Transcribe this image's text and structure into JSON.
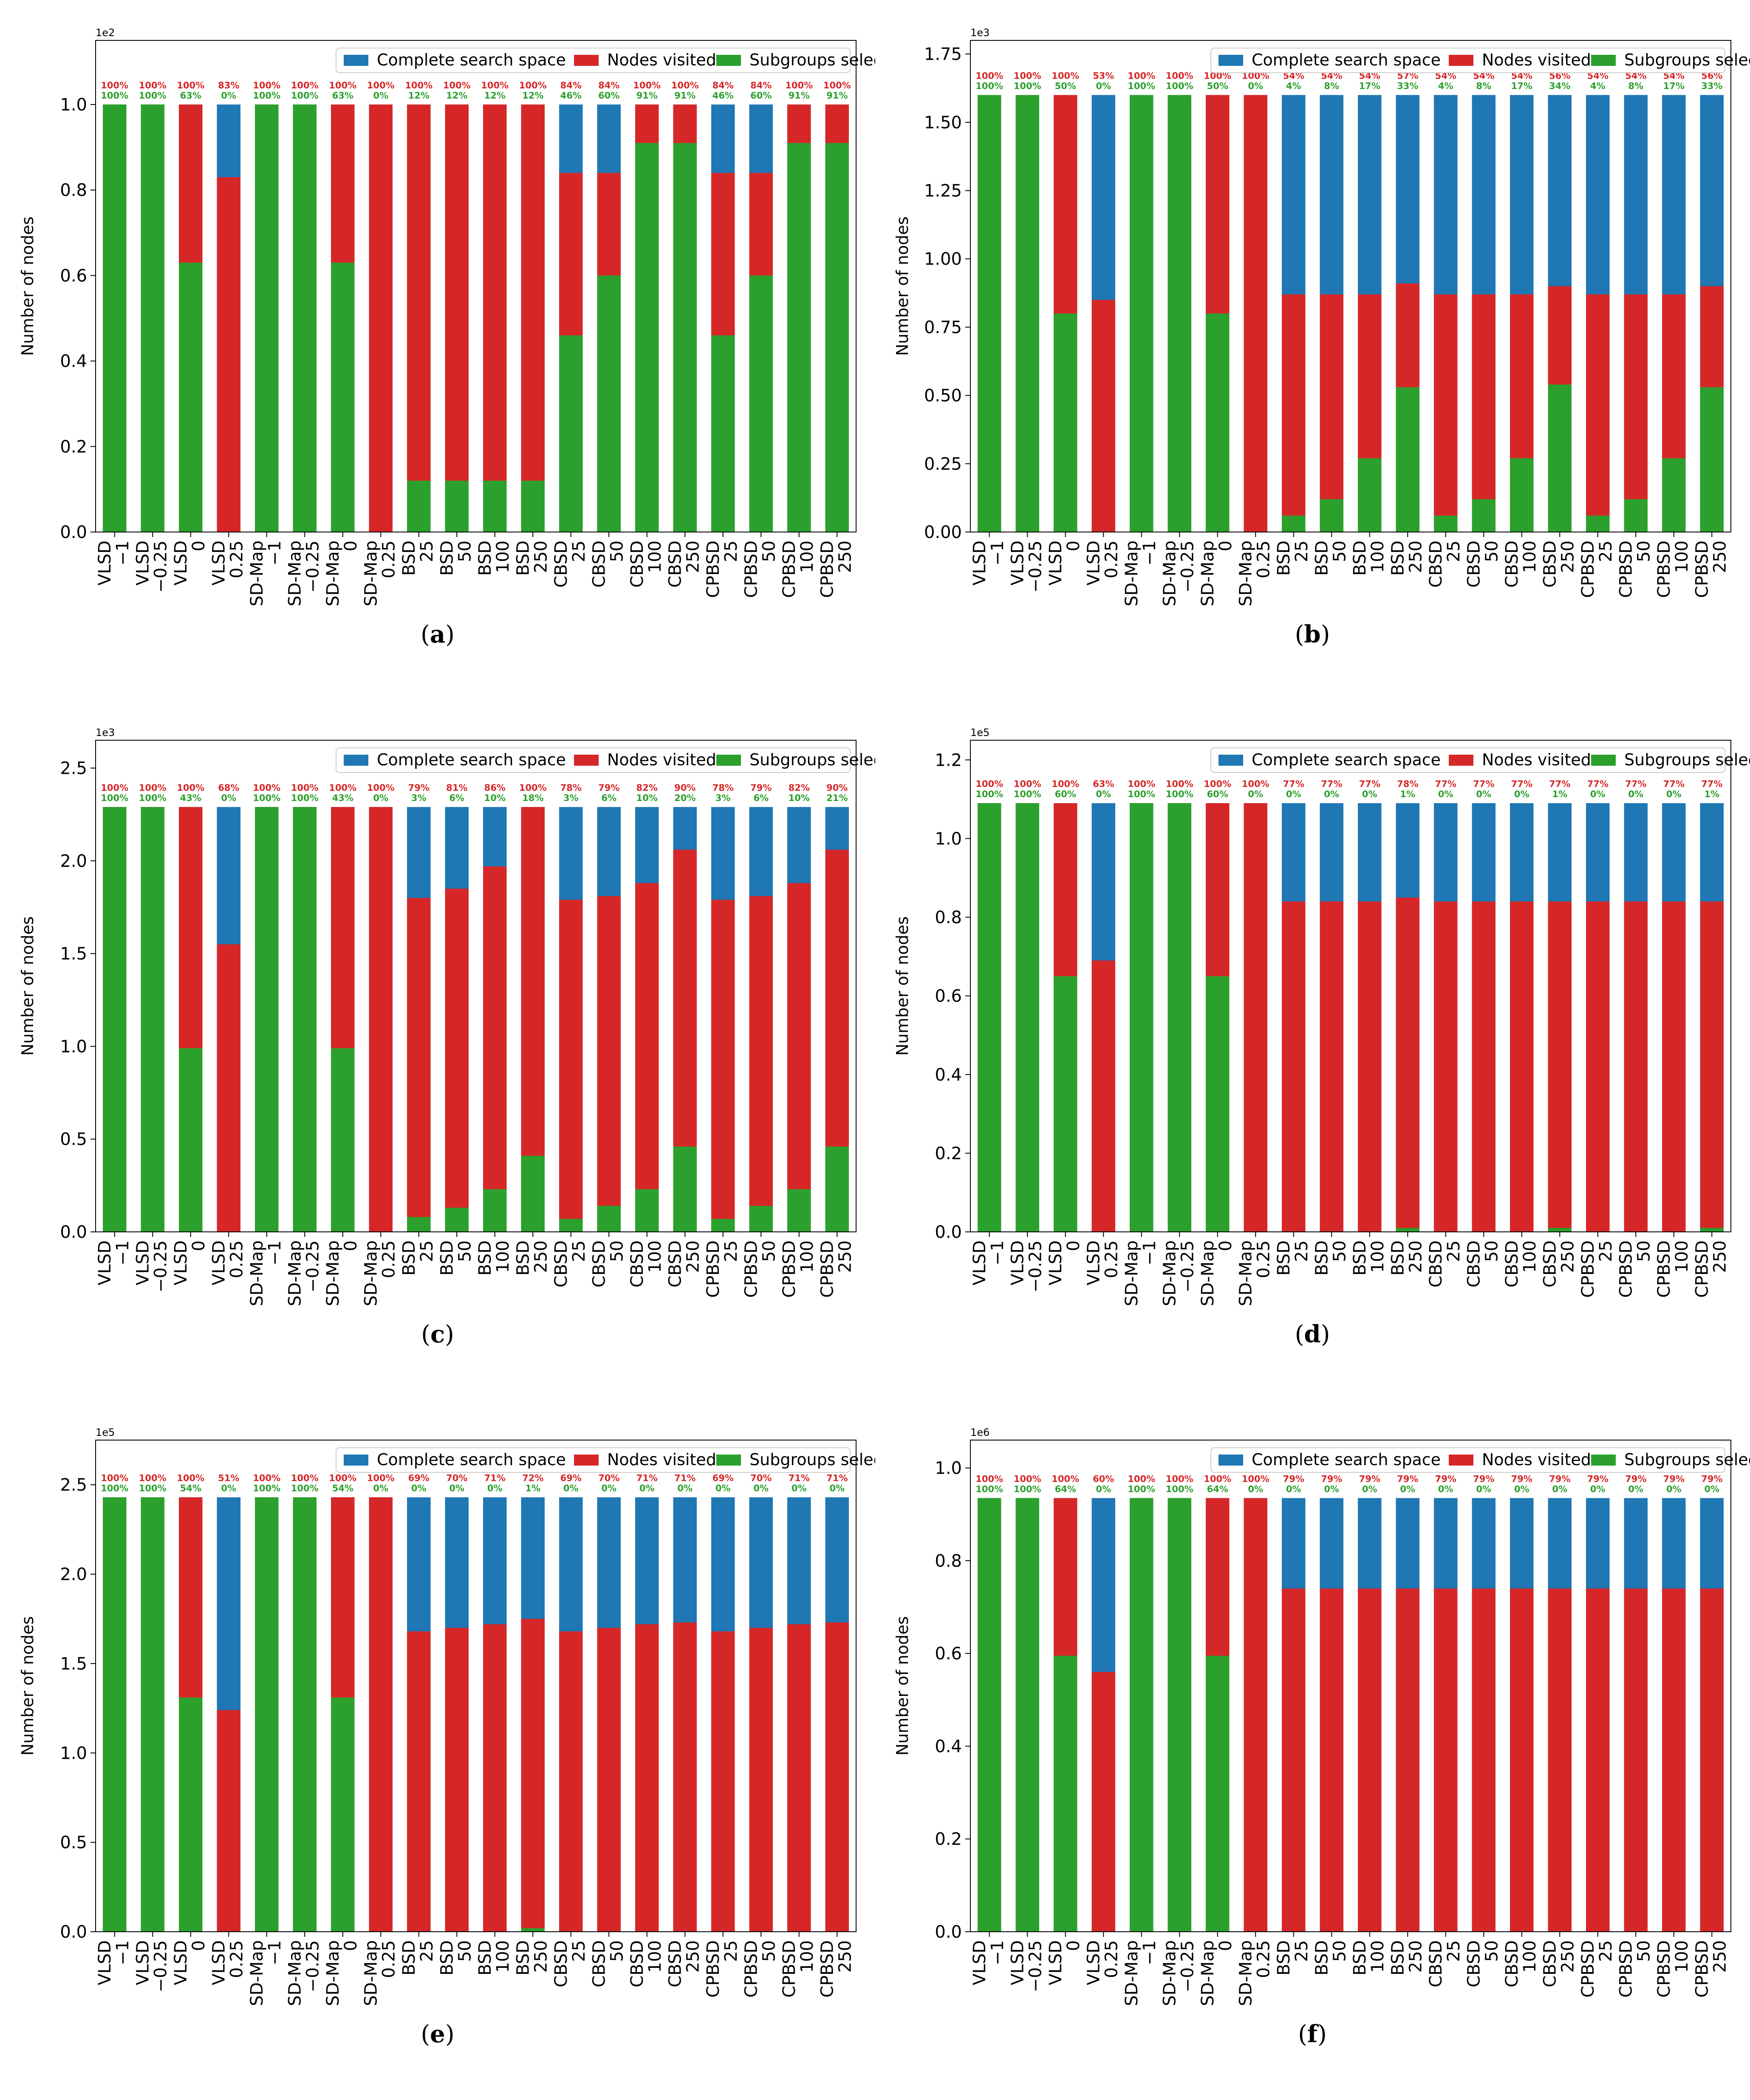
{
  "legend": {
    "complete": "Complete search space",
    "visited": "Nodes visited",
    "selected": "Subgroups selected"
  },
  "colors": {
    "complete": "#1f77b4",
    "visited": "#d62728",
    "selected": "#2ca02c",
    "pct_visited": "#d62728",
    "pct_selected": "#2ca02c"
  },
  "chart_data": [
    {
      "type": "bar",
      "panel": "a",
      "ylabel": "Number of nodes",
      "exponent_label": "1e2",
      "ylim": [
        0,
        1.15
      ],
      "yticks": [
        "0.0",
        "0.2",
        "0.4",
        "0.6",
        "0.8",
        "1.0"
      ],
      "ytick_values": [
        0,
        0.2,
        0.4,
        0.6,
        0.8,
        1.0
      ],
      "legend_position": "top",
      "categories": [
        "VLSD\n−1",
        "VLSD\n−0.25",
        "VLSD\n0",
        "VLSD\n0.25",
        "SD-Map\n−1",
        "SD-Map\n−0.25",
        "SD-Map\n0",
        "SD-Map\n0.25",
        "BSD\n25",
        "BSD\n50",
        "BSD\n100",
        "BSD\n250",
        "CBSD\n25",
        "CBSD\n50",
        "CBSD\n100",
        "CBSD\n250",
        "CPBSD\n25",
        "CPBSD\n50",
        "CPBSD\n100",
        "CPBSD\n250"
      ],
      "complete": [
        1.0,
        1.0,
        1.0,
        1.0,
        1.0,
        1.0,
        1.0,
        1.0,
        1.0,
        1.0,
        1.0,
        1.0,
        1.0,
        1.0,
        1.0,
        1.0,
        1.0,
        1.0,
        1.0,
        1.0
      ],
      "visited": [
        1.0,
        1.0,
        1.0,
        0.83,
        1.0,
        1.0,
        1.0,
        1.0,
        1.0,
        1.0,
        1.0,
        1.0,
        0.84,
        0.84,
        1.0,
        1.0,
        0.84,
        0.84,
        1.0,
        1.0
      ],
      "selected": [
        1.0,
        1.0,
        0.63,
        0.0,
        1.0,
        1.0,
        0.63,
        0.0,
        0.12,
        0.12,
        0.12,
        0.12,
        0.46,
        0.6,
        0.91,
        0.91,
        0.46,
        0.6,
        0.91,
        0.91
      ],
      "pct_visited": [
        "100%",
        "100%",
        "100%",
        "83%",
        "100%",
        "100%",
        "100%",
        "100%",
        "100%",
        "100%",
        "100%",
        "100%",
        "84%",
        "84%",
        "100%",
        "100%",
        "84%",
        "84%",
        "100%",
        "100%"
      ],
      "pct_selected": [
        "100%",
        "100%",
        "63%",
        "0%",
        "100%",
        "100%",
        "63%",
        "0%",
        "12%",
        "12%",
        "12%",
        "12%",
        "46%",
        "60%",
        "91%",
        "91%",
        "46%",
        "60%",
        "91%",
        "91%"
      ]
    },
    {
      "type": "bar",
      "panel": "b",
      "ylabel": "Number of nodes",
      "exponent_label": "1e3",
      "ylim": [
        0,
        1.8
      ],
      "yticks": [
        "0.00",
        "0.25",
        "0.50",
        "0.75",
        "1.00",
        "1.25",
        "1.50",
        "1.75"
      ],
      "ytick_values": [
        0,
        0.25,
        0.5,
        0.75,
        1.0,
        1.25,
        1.5,
        1.75
      ],
      "legend_position": "top",
      "categories": [
        "VLSD\n−1",
        "VLSD\n−0.25",
        "VLSD\n0",
        "VLSD\n0.25",
        "SD-Map\n−1",
        "SD-Map\n−0.25",
        "SD-Map\n0",
        "SD-Map\n0.25",
        "BSD\n25",
        "BSD\n50",
        "BSD\n100",
        "BSD\n250",
        "CBSD\n25",
        "CBSD\n50",
        "CBSD\n100",
        "CBSD\n250",
        "CPBSD\n25",
        "CPBSD\n50",
        "CPBSD\n100",
        "CPBSD\n250"
      ],
      "complete": [
        1.6,
        1.6,
        1.6,
        1.6,
        1.6,
        1.6,
        1.6,
        1.6,
        1.6,
        1.6,
        1.6,
        1.6,
        1.6,
        1.6,
        1.6,
        1.6,
        1.6,
        1.6,
        1.6,
        1.6
      ],
      "visited": [
        1.6,
        1.6,
        1.6,
        0.85,
        1.6,
        1.6,
        1.6,
        1.6,
        0.87,
        0.87,
        0.87,
        0.91,
        0.87,
        0.87,
        0.87,
        0.9,
        0.87,
        0.87,
        0.87,
        0.9
      ],
      "selected": [
        1.6,
        1.6,
        0.8,
        0.0,
        1.6,
        1.6,
        0.8,
        0.0,
        0.06,
        0.12,
        0.27,
        0.53,
        0.06,
        0.12,
        0.27,
        0.54,
        0.06,
        0.12,
        0.27,
        0.53
      ],
      "pct_visited": [
        "100%",
        "100%",
        "100%",
        "53%",
        "100%",
        "100%",
        "100%",
        "100%",
        "54%",
        "54%",
        "54%",
        "57%",
        "54%",
        "54%",
        "54%",
        "56%",
        "54%",
        "54%",
        "54%",
        "56%"
      ],
      "pct_selected": [
        "100%",
        "100%",
        "50%",
        "0%",
        "100%",
        "100%",
        "50%",
        "0%",
        "4%",
        "8%",
        "17%",
        "33%",
        "4%",
        "8%",
        "17%",
        "34%",
        "4%",
        "8%",
        "17%",
        "33%"
      ]
    },
    {
      "type": "bar",
      "panel": "c",
      "ylabel": "Number of nodes",
      "exponent_label": "1e3",
      "ylim": [
        0,
        2.65
      ],
      "yticks": [
        "0.0",
        "0.5",
        "1.0",
        "1.5",
        "2.0",
        "2.5"
      ],
      "ytick_values": [
        0,
        0.5,
        1.0,
        1.5,
        2.0,
        2.5
      ],
      "legend_position": "top",
      "categories": [
        "VLSD\n−1",
        "VLSD\n−0.25",
        "VLSD\n0",
        "VLSD\n0.25",
        "SD-Map\n−1",
        "SD-Map\n−0.25",
        "SD-Map\n0",
        "SD-Map\n0.25",
        "BSD\n25",
        "BSD\n50",
        "BSD\n100",
        "BSD\n250",
        "CBSD\n25",
        "CBSD\n50",
        "CBSD\n100",
        "CBSD\n250",
        "CPBSD\n25",
        "CPBSD\n50",
        "CPBSD\n100",
        "CPBSD\n250"
      ],
      "complete": [
        2.29,
        2.29,
        2.29,
        2.29,
        2.29,
        2.29,
        2.29,
        2.29,
        2.29,
        2.29,
        2.29,
        2.29,
        2.29,
        2.29,
        2.29,
        2.29,
        2.29,
        2.29,
        2.29,
        2.29
      ],
      "visited": [
        2.29,
        2.29,
        2.29,
        1.55,
        2.29,
        2.29,
        2.29,
        2.29,
        1.8,
        1.85,
        1.97,
        2.29,
        1.79,
        1.81,
        1.88,
        2.06,
        1.79,
        1.81,
        1.88,
        2.06
      ],
      "selected": [
        2.29,
        2.29,
        0.99,
        0.0,
        2.29,
        2.29,
        0.99,
        0.0,
        0.08,
        0.13,
        0.23,
        0.41,
        0.07,
        0.14,
        0.23,
        0.46,
        0.07,
        0.14,
        0.23,
        0.46
      ],
      "pct_visited": [
        "100%",
        "100%",
        "100%",
        "68%",
        "100%",
        "100%",
        "100%",
        "100%",
        "79%",
        "81%",
        "86%",
        "100%",
        "78%",
        "79%",
        "82%",
        "90%",
        "78%",
        "79%",
        "82%",
        "90%"
      ],
      "pct_selected": [
        "100%",
        "100%",
        "43%",
        "0%",
        "100%",
        "100%",
        "43%",
        "0%",
        "3%",
        "6%",
        "10%",
        "18%",
        "3%",
        "6%",
        "10%",
        "20%",
        "3%",
        "6%",
        "10%",
        "21%"
      ]
    },
    {
      "type": "bar",
      "panel": "d",
      "ylabel": "Number of nodes",
      "exponent_label": "1e5",
      "ylim": [
        0,
        1.25
      ],
      "yticks": [
        "0.0",
        "0.2",
        "0.4",
        "0.6",
        "0.8",
        "1.0",
        "1.2"
      ],
      "ytick_values": [
        0,
        0.2,
        0.4,
        0.6,
        0.8,
        1.0,
        1.2
      ],
      "legend_position": "top",
      "categories": [
        "VLSD\n−1",
        "VLSD\n−0.25",
        "VLSD\n0",
        "VLSD\n0.25",
        "SD-Map\n−1",
        "SD-Map\n−0.25",
        "SD-Map\n0",
        "SD-Map\n0.25",
        "BSD\n25",
        "BSD\n50",
        "BSD\n100",
        "BSD\n250",
        "CBSD\n25",
        "CBSD\n50",
        "CBSD\n100",
        "CBSD\n250",
        "CPBSD\n25",
        "CPBSD\n50",
        "CPBSD\n100",
        "CPBSD\n250"
      ],
      "complete": [
        1.09,
        1.09,
        1.09,
        1.09,
        1.09,
        1.09,
        1.09,
        1.09,
        1.09,
        1.09,
        1.09,
        1.09,
        1.09,
        1.09,
        1.09,
        1.09,
        1.09,
        1.09,
        1.09,
        1.09
      ],
      "visited": [
        1.09,
        1.09,
        1.09,
        0.69,
        1.09,
        1.09,
        1.09,
        1.09,
        0.84,
        0.84,
        0.84,
        0.85,
        0.84,
        0.84,
        0.84,
        0.84,
        0.84,
        0.84,
        0.84,
        0.84
      ],
      "selected": [
        1.09,
        1.09,
        0.65,
        0.0,
        1.09,
        1.09,
        0.65,
        0.0,
        0.0,
        0.0,
        0.0,
        0.01,
        0.0,
        0.0,
        0.0,
        0.01,
        0.0,
        0.0,
        0.0,
        0.01
      ],
      "pct_visited": [
        "100%",
        "100%",
        "100%",
        "63%",
        "100%",
        "100%",
        "100%",
        "100%",
        "77%",
        "77%",
        "77%",
        "78%",
        "77%",
        "77%",
        "77%",
        "77%",
        "77%",
        "77%",
        "77%",
        "77%"
      ],
      "pct_selected": [
        "100%",
        "100%",
        "60%",
        "0%",
        "100%",
        "100%",
        "60%",
        "0%",
        "0%",
        "0%",
        "0%",
        "1%",
        "0%",
        "0%",
        "0%",
        "1%",
        "0%",
        "0%",
        "0%",
        "1%"
      ]
    },
    {
      "type": "bar",
      "panel": "e",
      "ylabel": "Number of nodes",
      "exponent_label": "1e5",
      "ylim": [
        0,
        2.75
      ],
      "yticks": [
        "0.0",
        "0.5",
        "1.0",
        "1.5",
        "2.0",
        "2.5"
      ],
      "ytick_values": [
        0,
        0.5,
        1.0,
        1.5,
        2.0,
        2.5
      ],
      "legend_position": "top",
      "categories": [
        "VLSD\n−1",
        "VLSD\n−0.25",
        "VLSD\n0",
        "VLSD\n0.25",
        "SD-Map\n−1",
        "SD-Map\n−0.25",
        "SD-Map\n0",
        "SD-Map\n0.25",
        "BSD\n25",
        "BSD\n50",
        "BSD\n100",
        "BSD\n250",
        "CBSD\n25",
        "CBSD\n50",
        "CBSD\n100",
        "CBSD\n250",
        "CPBSD\n25",
        "CPBSD\n50",
        "CPBSD\n100",
        "CPBSD\n250"
      ],
      "complete": [
        2.43,
        2.43,
        2.43,
        2.43,
        2.43,
        2.43,
        2.43,
        2.43,
        2.43,
        2.43,
        2.43,
        2.43,
        2.43,
        2.43,
        2.43,
        2.43,
        2.43,
        2.43,
        2.43,
        2.43
      ],
      "visited": [
        2.43,
        2.43,
        2.43,
        1.24,
        2.43,
        2.43,
        2.43,
        2.43,
        1.68,
        1.7,
        1.72,
        1.75,
        1.68,
        1.7,
        1.72,
        1.73,
        1.68,
        1.7,
        1.72,
        1.73
      ],
      "selected": [
        2.43,
        2.43,
        1.31,
        0.0,
        2.43,
        2.43,
        1.31,
        0.0,
        0.0,
        0.0,
        0.0,
        0.02,
        0.0,
        0.0,
        0.0,
        0.0,
        0.0,
        0.0,
        0.0,
        0.0
      ],
      "pct_visited": [
        "100%",
        "100%",
        "100%",
        "51%",
        "100%",
        "100%",
        "100%",
        "100%",
        "69%",
        "70%",
        "71%",
        "72%",
        "69%",
        "70%",
        "71%",
        "71%",
        "69%",
        "70%",
        "71%",
        "71%"
      ],
      "pct_selected": [
        "100%",
        "100%",
        "54%",
        "0%",
        "100%",
        "100%",
        "54%",
        "0%",
        "0%",
        "0%",
        "0%",
        "1%",
        "0%",
        "0%",
        "0%",
        "0%",
        "0%",
        "0%",
        "0%",
        "0%"
      ]
    },
    {
      "type": "bar",
      "panel": "f",
      "ylabel": "Number of nodes",
      "exponent_label": "1e6",
      "ylim": [
        0,
        1.06
      ],
      "yticks": [
        "0.0",
        "0.2",
        "0.4",
        "0.6",
        "0.8",
        "1.0"
      ],
      "ytick_values": [
        0,
        0.2,
        0.4,
        0.6,
        0.8,
        1.0
      ],
      "legend_position": "top",
      "categories": [
        "VLSD\n−1",
        "VLSD\n−0.25",
        "VLSD\n0",
        "VLSD\n0.25",
        "SD-Map\n−1",
        "SD-Map\n−0.25",
        "SD-Map\n0",
        "SD-Map\n0.25",
        "BSD\n25",
        "BSD\n50",
        "BSD\n100",
        "BSD\n250",
        "CBSD\n25",
        "CBSD\n50",
        "CBSD\n100",
        "CBSD\n250",
        "CPBSD\n25",
        "CPBSD\n50",
        "CPBSD\n100",
        "CPBSD\n250"
      ],
      "complete": [
        0.935,
        0.935,
        0.935,
        0.935,
        0.935,
        0.935,
        0.935,
        0.935,
        0.935,
        0.935,
        0.935,
        0.935,
        0.935,
        0.935,
        0.935,
        0.935,
        0.935,
        0.935,
        0.935,
        0.935
      ],
      "visited": [
        0.935,
        0.935,
        0.935,
        0.56,
        0.935,
        0.935,
        0.935,
        0.935,
        0.74,
        0.74,
        0.74,
        0.74,
        0.74,
        0.74,
        0.74,
        0.74,
        0.74,
        0.74,
        0.74,
        0.74
      ],
      "selected": [
        0.935,
        0.935,
        0.595,
        0.0,
        0.935,
        0.935,
        0.595,
        0.0,
        0.0,
        0.0,
        0.0,
        0.0,
        0.0,
        0.0,
        0.0,
        0.0,
        0.0,
        0.0,
        0.0,
        0.0
      ],
      "pct_visited": [
        "100%",
        "100%",
        "100%",
        "60%",
        "100%",
        "100%",
        "100%",
        "100%",
        "79%",
        "79%",
        "79%",
        "79%",
        "79%",
        "79%",
        "79%",
        "79%",
        "79%",
        "79%",
        "79%",
        "79%"
      ],
      "pct_selected": [
        "100%",
        "100%",
        "64%",
        "0%",
        "100%",
        "100%",
        "64%",
        "0%",
        "0%",
        "0%",
        "0%",
        "0%",
        "0%",
        "0%",
        "0%",
        "0%",
        "0%",
        "0%",
        "0%",
        "0%"
      ]
    }
  ],
  "captions": [
    {
      "open": "(",
      "letter": "a",
      "close": ")"
    },
    {
      "open": "(",
      "letter": "b",
      "close": ")"
    },
    {
      "open": "(",
      "letter": "c",
      "close": ")"
    },
    {
      "open": "(",
      "letter": "d",
      "close": ")"
    },
    {
      "open": "(",
      "letter": "e",
      "close": ")"
    },
    {
      "open": "(",
      "letter": "f",
      "close": ")"
    }
  ]
}
